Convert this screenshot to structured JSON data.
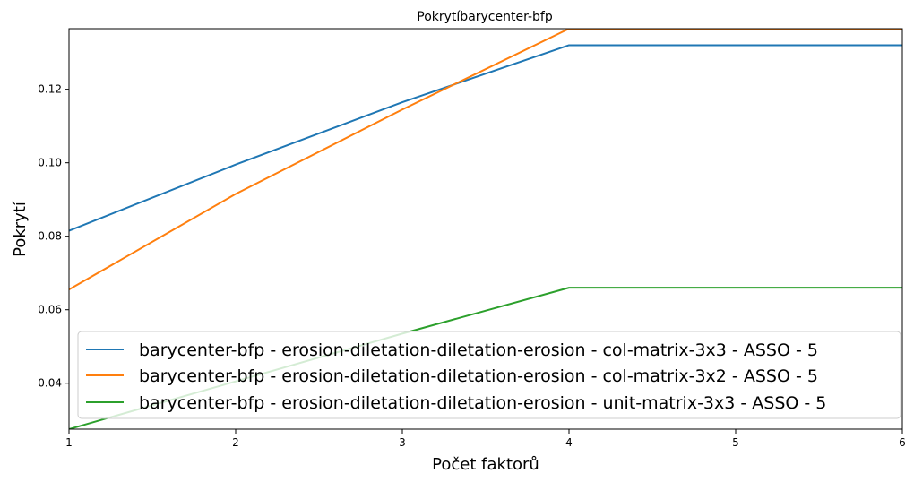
{
  "chart_data": {
    "type": "line",
    "title": "Pokrytíbarycenter-bfp",
    "xlabel": "Počet faktorů",
    "ylabel": "Pokrytí",
    "x": [
      1,
      2,
      3,
      4,
      5,
      6
    ],
    "xlim": [
      1,
      6
    ],
    "ylim": [
      0.0275,
      0.1365
    ],
    "xticks": [
      1,
      2,
      3,
      4,
      5,
      6
    ],
    "xtick_labels": [
      "1",
      "2",
      "3",
      "4",
      "5",
      "6"
    ],
    "yticks": [
      0.04,
      0.06,
      0.08,
      0.1,
      0.12
    ],
    "ytick_labels": [
      "0.04",
      "0.06",
      "0.08",
      "0.10",
      "0.12"
    ],
    "grid": false,
    "legend_position": "bottom",
    "series": [
      {
        "name": "barycenter-bfp - erosion-diletation-diletation-erosion - col-matrix-3x3 - ASSO - 5",
        "color": "#1f77b4",
        "values": [
          0.0815,
          0.0995,
          0.1165,
          0.132,
          0.132,
          0.132
        ]
      },
      {
        "name": "barycenter-bfp - erosion-diletation-diletation-erosion - col-matrix-3x2 - ASSO - 5",
        "color": "#ff7f0e",
        "values": [
          0.0655,
          0.0915,
          0.1145,
          0.1365,
          0.1365,
          0.1365
        ]
      },
      {
        "name": "barycenter-bfp - erosion-diletation-diletation-erosion - unit-matrix-3x3 - ASSO - 5",
        "color": "#2ca02c",
        "values": [
          0.0275,
          0.0405,
          0.0535,
          0.066,
          0.066,
          0.066
        ]
      }
    ]
  }
}
